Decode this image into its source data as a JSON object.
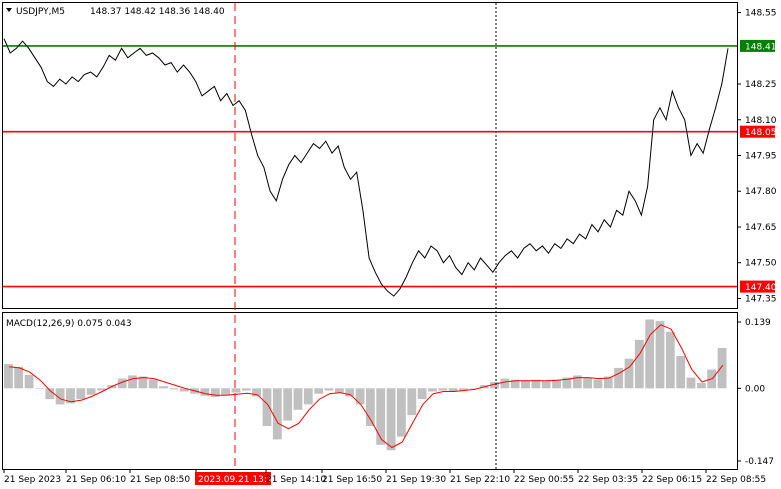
{
  "header": {
    "symbol": "USDJPY,M5",
    "ohlc": "148.37 148.42 148.36 148.40"
  },
  "macd": {
    "label": "MACD(12,26,9) 0.075 0.043"
  },
  "colors": {
    "price_line": "#000000",
    "level_red": "#ff0000",
    "level_green": "#008000",
    "histogram": "#c0c0c0",
    "signal": "#ff0000",
    "grid_border": "#000000",
    "badge_highlight": "#ff0000"
  },
  "chart_data": [
    {
      "type": "line",
      "panel": "price",
      "ylim": [
        147.31,
        148.59
      ],
      "y_ticks": [
        "148.55",
        "148.25",
        "148.10",
        "147.95",
        "147.80",
        "147.65",
        "147.50",
        "147.35"
      ],
      "x_ticks": [
        "21 Sep 2023",
        "21 Sep 06:10",
        "21 Sep 08:50",
        "2023.09.21 13:10",
        "21 Sep 14:10",
        "21 Sep 16:50",
        "21 Sep 19:30",
        "21 Sep 22:10",
        "22 Sep 00:55",
        "22 Sep 03:35",
        "22 Sep 06:15",
        "22 Sep 08:55"
      ],
      "highlighted_x_tick": "2023.09.21 13:10",
      "levels": [
        {
          "label": "148.41",
          "value": 148.41,
          "color": "#008000"
        },
        {
          "label": "148.05",
          "value": 148.05,
          "color": "#ff0000"
        },
        {
          "label": "147.40",
          "value": 147.4,
          "color": "#ff0000"
        }
      ],
      "series": [
        {
          "values": [
            148.44,
            148.38,
            148.4,
            148.43,
            148.4,
            148.36,
            148.32,
            148.26,
            148.24,
            148.27,
            148.25,
            148.28,
            148.26,
            148.29,
            148.3,
            148.28,
            148.32,
            148.37,
            148.35,
            148.4,
            148.36,
            148.38,
            148.4,
            148.37,
            148.38,
            148.36,
            148.33,
            148.34,
            148.3,
            148.33,
            148.3,
            148.26,
            148.2,
            148.22,
            148.24,
            148.18,
            148.21,
            148.16,
            148.18,
            148.14,
            148.04,
            147.95,
            147.9,
            147.8,
            147.76,
            147.85,
            147.91,
            147.95,
            147.92,
            147.96,
            148.0,
            147.98,
            148.01,
            147.96,
            147.99,
            147.9,
            147.85,
            147.88,
            147.72,
            147.52,
            147.46,
            147.41,
            147.38,
            147.36,
            147.39,
            147.44,
            147.5,
            147.55,
            147.52,
            147.57,
            147.55,
            147.5,
            147.53,
            147.48,
            147.45,
            147.5,
            147.47,
            147.52,
            147.49,
            147.46,
            147.5,
            147.53,
            147.55,
            147.52,
            147.56,
            147.58,
            147.55,
            147.57,
            147.54,
            147.58,
            147.56,
            147.6,
            147.58,
            147.62,
            147.6,
            147.66,
            147.63,
            147.68,
            147.65,
            147.72,
            147.7,
            147.8,
            147.76,
            147.7,
            147.82,
            148.1,
            148.15,
            148.1,
            148.22,
            148.15,
            148.1,
            147.95,
            148.0,
            147.96,
            148.06,
            148.15,
            148.25,
            148.4
          ]
        }
      ]
    },
    {
      "type": "bar",
      "panel": "macd",
      "ylim": [
        -0.15,
        0.14
      ],
      "y_ticks": [
        "0.139",
        "0.00",
        "-0.147"
      ],
      "series": [
        {
          "name": "MACD(12,26,9)",
          "values": [
            0.045,
            0.04,
            0.025,
            0.0,
            -0.02,
            -0.03,
            -0.028,
            -0.02,
            -0.012,
            -0.004,
            0.006,
            0.018,
            0.024,
            0.022,
            0.016,
            0.004,
            -0.002,
            -0.006,
            -0.01,
            -0.014,
            -0.016,
            -0.012,
            -0.008,
            -0.004,
            -0.015,
            -0.07,
            -0.095,
            -0.06,
            -0.04,
            -0.03,
            -0.01,
            -0.004,
            -0.008,
            -0.015,
            -0.03,
            -0.07,
            -0.105,
            -0.115,
            -0.09,
            -0.05,
            -0.02,
            -0.006,
            -0.004,
            -0.006,
            -0.004,
            0.0,
            0.006,
            0.012,
            0.018,
            0.016,
            0.014,
            0.016,
            0.014,
            0.016,
            0.02,
            0.024,
            0.02,
            0.016,
            0.022,
            0.038,
            0.055,
            0.09,
            0.128,
            0.125,
            0.105,
            0.06,
            0.02,
            0.01,
            0.035,
            0.075
          ]
        },
        {
          "name": "signal",
          "values": [
            0.04,
            0.038,
            0.03,
            0.015,
            -0.005,
            -0.02,
            -0.025,
            -0.022,
            -0.015,
            -0.006,
            0.004,
            0.012,
            0.018,
            0.02,
            0.018,
            0.012,
            0.006,
            0.0,
            -0.005,
            -0.01,
            -0.013,
            -0.013,
            -0.011,
            -0.009,
            -0.012,
            -0.03,
            -0.065,
            -0.075,
            -0.065,
            -0.04,
            -0.02,
            -0.01,
            -0.008,
            -0.012,
            -0.03,
            -0.06,
            -0.095,
            -0.11,
            -0.1,
            -0.065,
            -0.03,
            -0.01,
            -0.006,
            -0.006,
            -0.004,
            -0.002,
            0.003,
            0.008,
            0.012,
            0.014,
            0.014,
            0.014,
            0.014,
            0.015,
            0.017,
            0.02,
            0.02,
            0.018,
            0.019,
            0.028,
            0.04,
            0.065,
            0.1,
            0.118,
            0.11,
            0.075,
            0.035,
            0.012,
            0.018,
            0.043
          ]
        }
      ]
    }
  ]
}
